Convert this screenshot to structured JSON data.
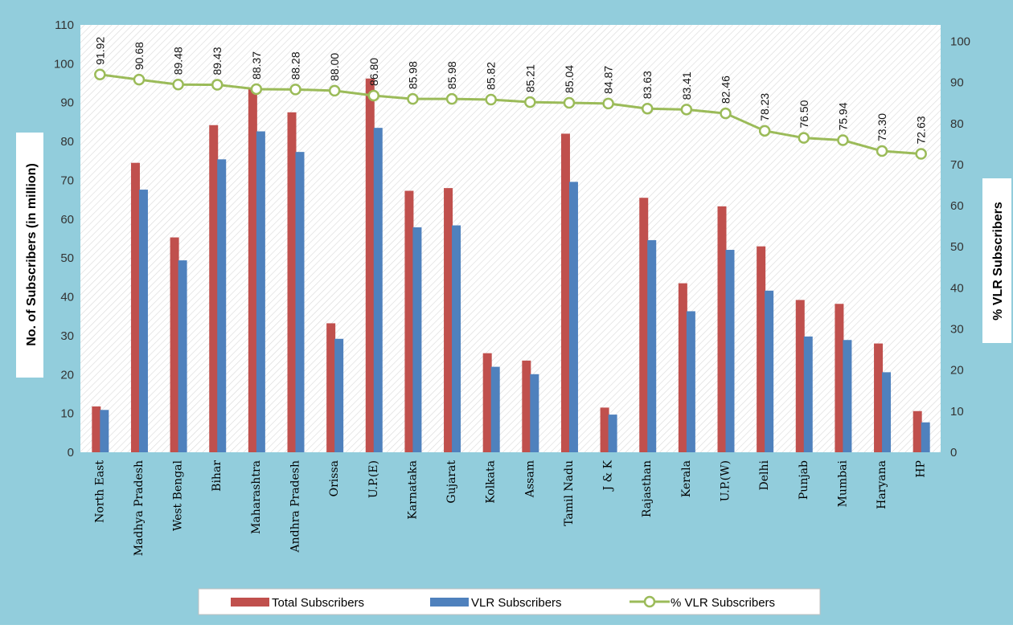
{
  "chart_data": {
    "type": "bar",
    "categories": [
      "North East",
      "Madhya Pradesh",
      "West Bengal",
      "Bihar",
      "Maharashtra",
      "Andhra Pradesh",
      "Orissa",
      "U.P.(E)",
      "Karnataka",
      "Gujarat",
      "Kolkata",
      "Assam",
      "Tamil Nadu",
      "J & K",
      "Rajasthan",
      "Kerala",
      "U.P.(W)",
      "Delhi",
      "Punjab",
      "Mumbai",
      "Haryana",
      "HP"
    ],
    "series": [
      {
        "name": "Total Subscribers",
        "axis": "left",
        "kind": "bar",
        "color": "#c0504d",
        "values": [
          11.8,
          74.5,
          55.3,
          84.2,
          93.5,
          87.5,
          33.2,
          96.2,
          67.3,
          68.0,
          25.5,
          23.6,
          82.0,
          11.5,
          65.5,
          43.5,
          63.3,
          53.0,
          39.2,
          38.2,
          28.0,
          10.6
        ]
      },
      {
        "name": "VLR Subscribers",
        "axis": "right-scaled",
        "kind": "bar",
        "color": "#4f81bd",
        "values": [
          10.9,
          67.6,
          49.4,
          75.4,
          82.6,
          77.3,
          29.2,
          83.5,
          57.9,
          58.4,
          22.0,
          20.1,
          69.6,
          9.7,
          54.6,
          36.3,
          52.1,
          41.6,
          29.8,
          28.9,
          20.6,
          7.7
        ]
      },
      {
        "name": "% VLR Subscribers",
        "axis": "right",
        "kind": "line",
        "color": "#9bbb59",
        "values": [
          91.92,
          90.68,
          89.48,
          89.43,
          88.37,
          88.28,
          88.0,
          86.8,
          85.98,
          85.98,
          85.82,
          85.21,
          85.04,
          84.87,
          83.63,
          83.41,
          82.46,
          78.23,
          76.5,
          75.94,
          73.3,
          72.63
        ],
        "labels": [
          "91.92",
          "90.68",
          "89.48",
          "89.43",
          "88.37",
          "88.28",
          "88.00",
          "86.80",
          "85.98",
          "85.98",
          "85.82",
          "85.21",
          "85.04",
          "84.87",
          "83.63",
          "83.41",
          "82.46",
          "78.23",
          "76.50",
          "75.94",
          "73.30",
          "72.63"
        ]
      }
    ],
    "ylabel": "No. of Subscribers (in million)",
    "y2label": "% VLR Subscribers",
    "ylim": [
      0,
      110
    ],
    "yticks": [
      "0",
      "10",
      "20",
      "30",
      "40",
      "50",
      "60",
      "70",
      "80",
      "90",
      "100",
      "110"
    ],
    "y2lim": [
      0,
      104
    ],
    "y2ticks": [
      "0",
      "10",
      "20",
      "30",
      "40",
      "50",
      "60",
      "70",
      "80",
      "90",
      "100"
    ],
    "legend_position": "bottom",
    "grid": false,
    "colors": {
      "frame": "#92cddc",
      "plot_bg": "#ffffff",
      "line_marker_fill": "#ffffff"
    }
  }
}
